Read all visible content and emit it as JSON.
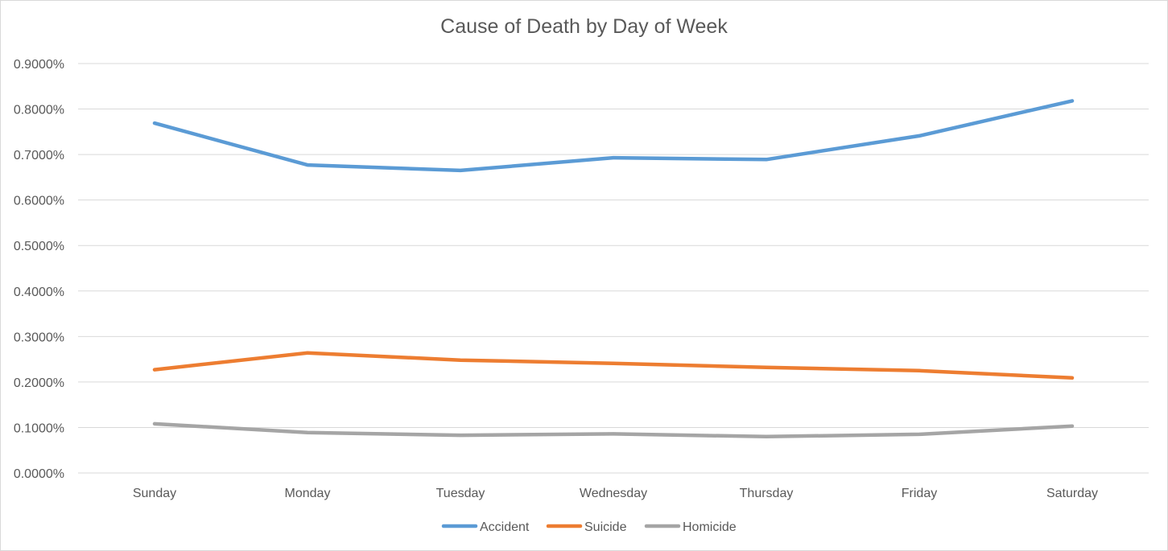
{
  "chart_data": {
    "type": "line",
    "title": "Cause of Death by Day of Week",
    "xlabel": "",
    "ylabel": "",
    "categories": [
      "Sunday",
      "Monday",
      "Tuesday",
      "Wednesday",
      "Thursday",
      "Friday",
      "Saturday"
    ],
    "ylim": [
      0,
      0.009
    ],
    "ytick_step": 0.001,
    "ytick_labels": [
      "0.0000%",
      "0.1000%",
      "0.2000%",
      "0.3000%",
      "0.4000%",
      "0.5000%",
      "0.6000%",
      "0.7000%",
      "0.8000%",
      "0.9000%"
    ],
    "grid": true,
    "legend_position": "bottom",
    "series": [
      {
        "name": "Accident",
        "color": "#5b9bd5",
        "values": [
          0.00769,
          0.00677,
          0.00665,
          0.00693,
          0.00689,
          0.00741,
          0.00818
        ]
      },
      {
        "name": "Suicide",
        "color": "#ed7d31",
        "values": [
          0.00227,
          0.00264,
          0.00248,
          0.00241,
          0.00232,
          0.00225,
          0.00209
        ]
      },
      {
        "name": "Homicide",
        "color": "#a5a5a5",
        "values": [
          0.00108,
          0.00089,
          0.00083,
          0.00086,
          0.0008,
          0.00085,
          0.00103
        ]
      }
    ]
  }
}
